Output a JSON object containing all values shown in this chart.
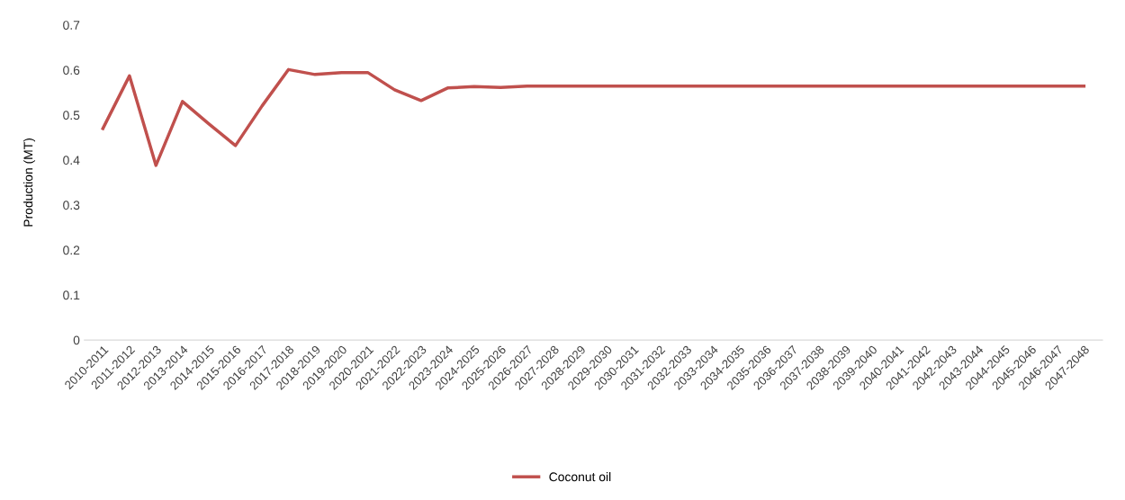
{
  "chart_data": {
    "type": "line",
    "ylabel": "Production (MT)",
    "categories": [
      "2010-2011",
      "2011-2012",
      "2012-2013",
      "2013-2014",
      "2014-2015",
      "2015-2016",
      "2016-2017",
      "2017-2018",
      "2018-2019",
      "2019-2020",
      "2020-2021",
      "2021-2022",
      "2022-2023",
      "2023-2024",
      "2024-2025",
      "2025-2026",
      "2026-2027",
      "2027-2028",
      "2028-2029",
      "2029-2030",
      "2030-2031",
      "2031-2032",
      "2032-2033",
      "2033-2034",
      "2034-2035",
      "2035-2036",
      "2036-2037",
      "2037-2038",
      "2038-2039",
      "2039-2040",
      "2040-2041",
      "2041-2042",
      "2042-2043",
      "2043-2044",
      "2044-2045",
      "2045-2046",
      "2046-2047",
      "2047-2048"
    ],
    "series": [
      {
        "name": "Coconut oil",
        "color": "#c0504d",
        "values": [
          0.47,
          0.587,
          0.388,
          0.53,
          0.48,
          0.432,
          0.52,
          0.601,
          0.59,
          0.594,
          0.594,
          0.556,
          0.532,
          0.56,
          0.563,
          0.561,
          0.564,
          0.564,
          0.564,
          0.564,
          0.564,
          0.564,
          0.564,
          0.564,
          0.564,
          0.564,
          0.564,
          0.564,
          0.564,
          0.564,
          0.564,
          0.564,
          0.564,
          0.564,
          0.564,
          0.564,
          0.564,
          0.564
        ]
      }
    ],
    "ylim": [
      0,
      0.7
    ],
    "yticks": [
      0,
      0.1,
      0.2,
      0.3,
      0.4,
      0.5,
      0.6,
      0.7
    ],
    "grid": false,
    "legend": "bottom",
    "marker": "none",
    "line_style": "solid"
  }
}
